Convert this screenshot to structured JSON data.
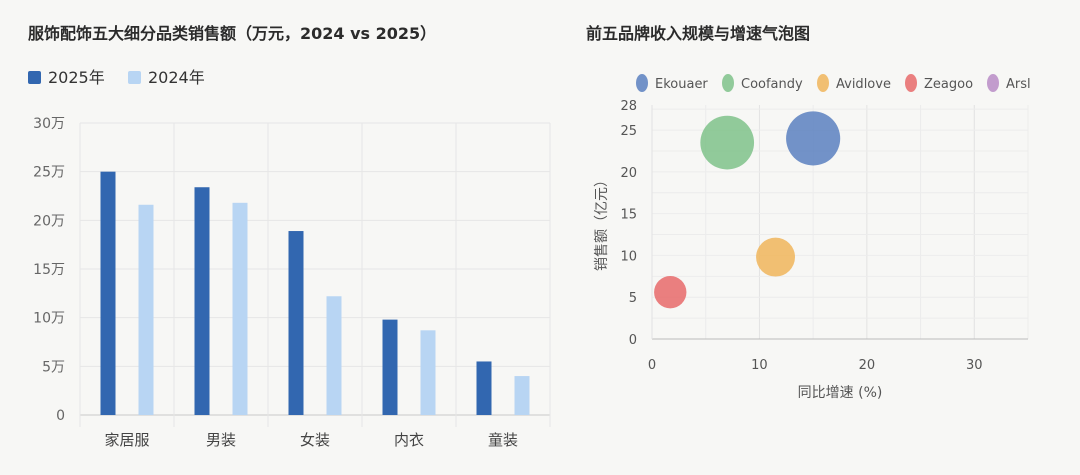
{
  "left_chart": {
    "title": "服饰配饰五大细分品类销售额（万元，2024 vs 2025）"
  },
  "right_chart": {
    "title": "前五品牌收入规模与增速气泡图"
  },
  "colors": {
    "series_2025": "#3267b0",
    "series_2024": "#b8d5f3",
    "Ekouaer": "#5b80bf",
    "Coofandy": "#7fc28a",
    "Avidlove": "#f0b55a",
    "Zeagoo": "#e86a6a",
    "Arsl": "#b98cc6"
  },
  "chart_data": [
    {
      "type": "bar",
      "title": "服饰配饰五大细分品类销售额（万元，2024 vs 2025）",
      "categories": [
        "家居服",
        "男装",
        "女装",
        "内衣",
        "童装"
      ],
      "series": [
        {
          "name": "2025年",
          "values": [
            25,
            23.4,
            18.9,
            9.8,
            5.5
          ]
        },
        {
          "name": "2024年",
          "values": [
            21.6,
            21.8,
            12.2,
            8.7,
            4.0
          ]
        }
      ],
      "ylim": [
        0,
        30
      ],
      "y_ticks": [
        "0",
        "5万",
        "10万",
        "15万",
        "20万",
        "25万",
        "30万"
      ],
      "legend": "top-left",
      "grid": true
    },
    {
      "type": "scatter",
      "subtype": "bubble",
      "title": "前五品牌收入规模与增速气泡图",
      "xlabel": "同比增速 (%)",
      "ylabel": "销售额（亿元）",
      "xlim": [
        0,
        35
      ],
      "ylim": [
        0,
        28
      ],
      "x_ticks": [
        0,
        10,
        20,
        30
      ],
      "y_ticks": [
        0,
        5,
        10,
        15,
        20,
        25,
        28
      ],
      "legend": "top",
      "grid": true,
      "series": [
        {
          "name": "Ekouaer",
          "x": 15,
          "y": 24,
          "size": 24
        },
        {
          "name": "Coofandy",
          "x": 7,
          "y": 23.5,
          "size": 23.5
        },
        {
          "name": "Avidlove",
          "x": 11.5,
          "y": 9.8,
          "size": 9.8
        },
        {
          "name": "Zeagoo",
          "x": 1.7,
          "y": 5.6,
          "size": 5.6
        },
        {
          "name": "Arsl",
          "x": null,
          "y": null,
          "size": null
        }
      ]
    }
  ]
}
